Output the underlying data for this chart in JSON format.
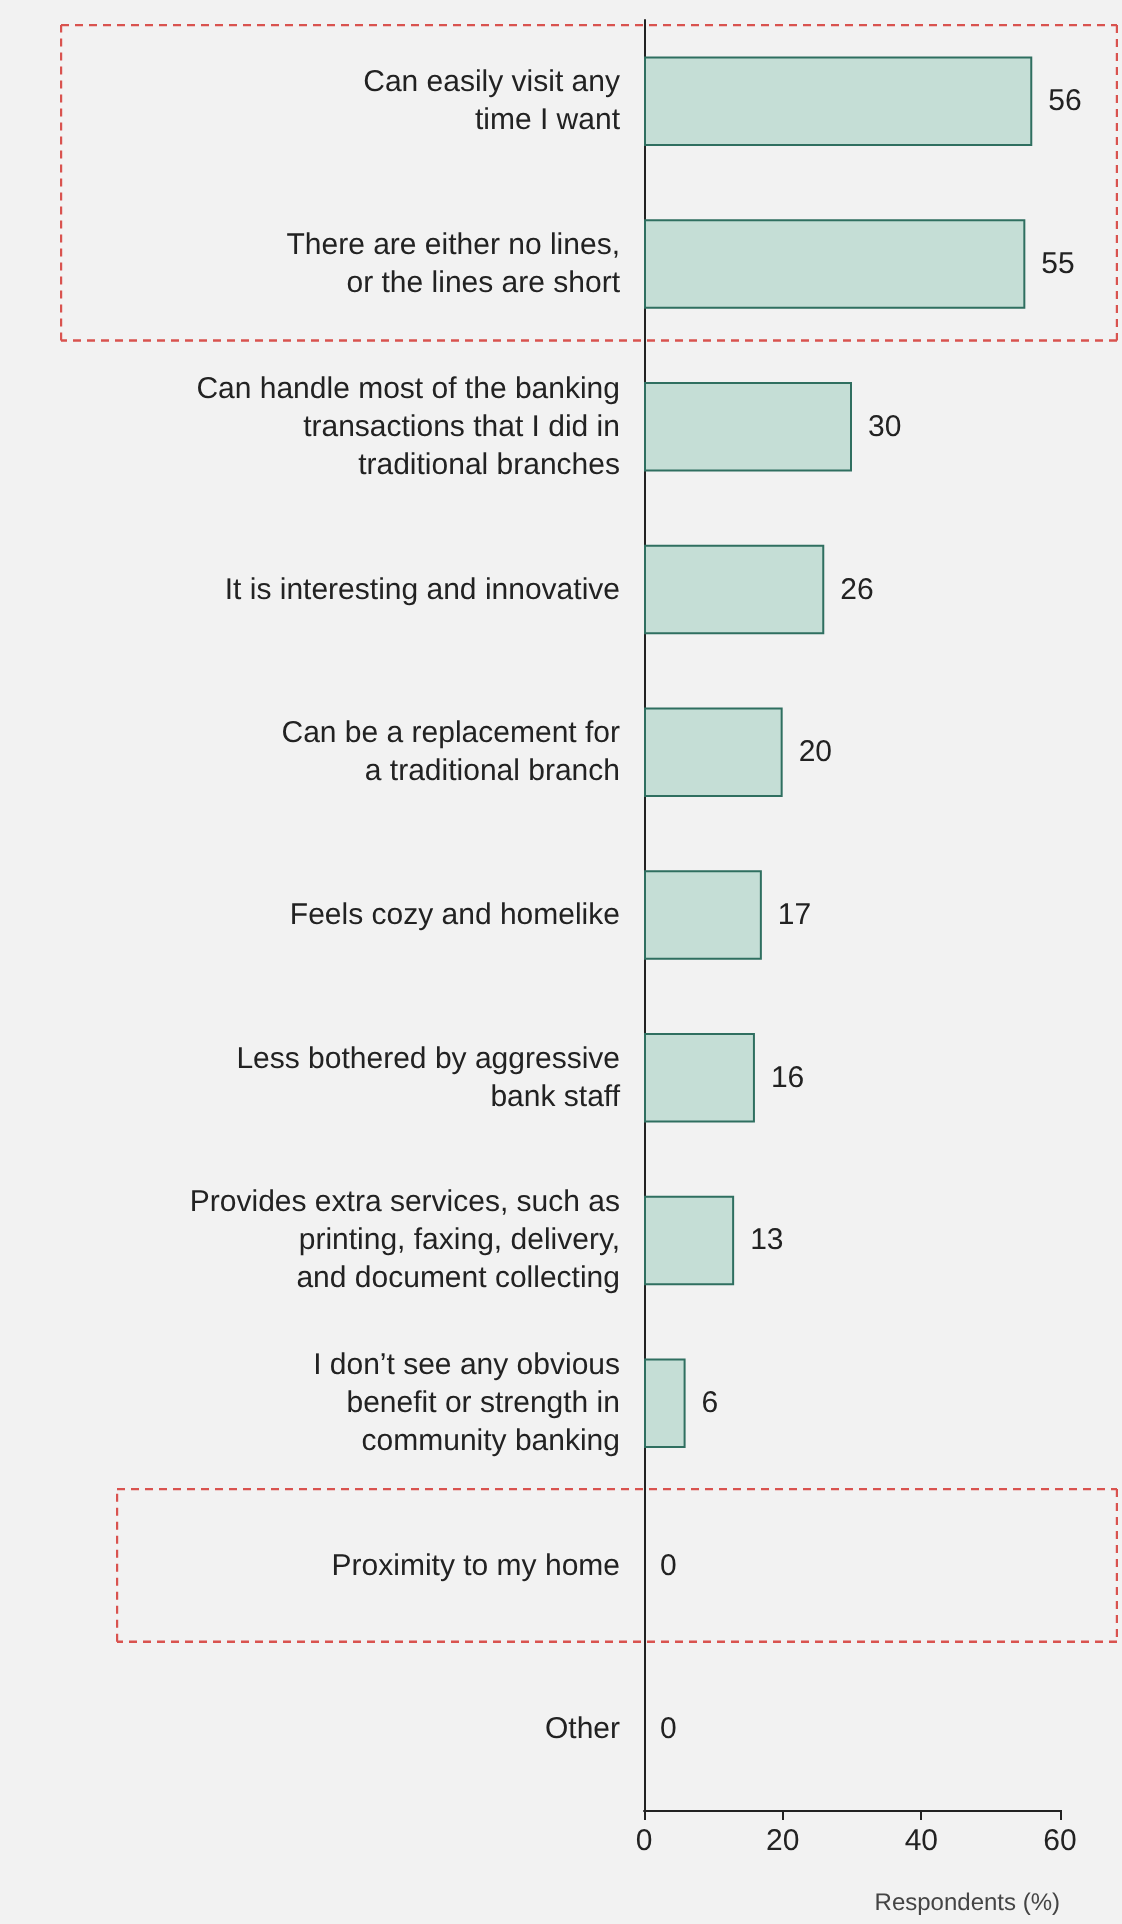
{
  "chart_data": {
    "type": "bar",
    "orientation": "horizontal",
    "xlabel": "Respondents (%)",
    "categories": [
      "Can easily visit any\ntime I want",
      "There are either no lines,\nor the lines are short",
      "Can handle most of the banking\ntransactions that I did in\ntraditional branches",
      "It is interesting and innovative",
      "Can be a replacement for\na traditional branch",
      "Feels cozy and homelike",
      "Less bothered by aggressive\nbank staff",
      "Provides extra services, such as\nprinting, faxing, delivery,\nand document collecting",
      "I don’t see any obvious\nbenefit or strength in\ncommunity banking",
      "Proximity to my home",
      "Other"
    ],
    "values": [
      56,
      55,
      30,
      26,
      20,
      17,
      16,
      13,
      6,
      0,
      0
    ],
    "color": "#c5ded6",
    "xlim": [
      0,
      60
    ],
    "xticks": [
      0,
      20,
      40,
      60
    ],
    "data_labels": true,
    "grid": false
  }
}
